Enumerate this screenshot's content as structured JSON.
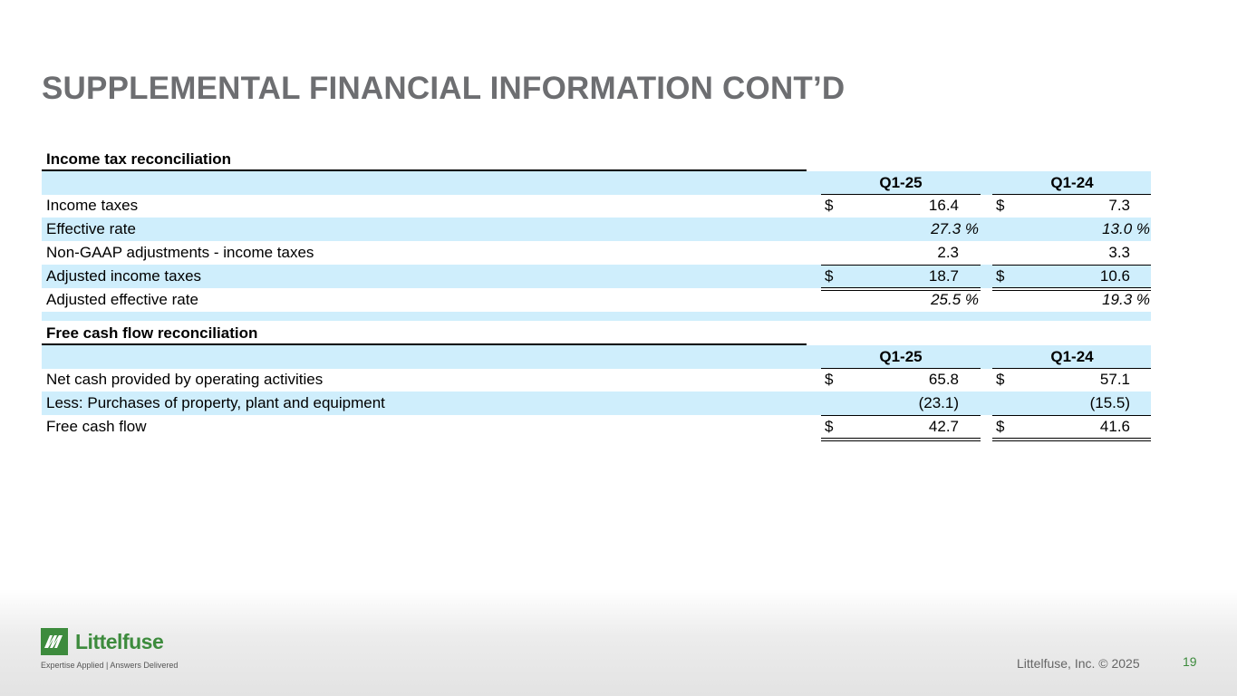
{
  "slide": {
    "title": "SUPPLEMENTAL FINANCIAL INFORMATION CONT’D",
    "copyright": "Littelfuse, Inc. © 2025",
    "page_number": "19"
  },
  "logo": {
    "name": "Littelfuse",
    "tagline": "Expertise Applied | Answers Delivered",
    "brand_color": "#3d8b3d"
  },
  "colors": {
    "row_shade": "#cfeefc",
    "title_gray": "#6d6e71"
  },
  "income_tax": {
    "title": "Income tax reconciliation",
    "columns": [
      "Q1-25",
      "Q1-24"
    ],
    "rows": [
      {
        "label": "Income taxes",
        "d1": "$",
        "v1": "16.4",
        "d2": "$",
        "v2": "7.3"
      },
      {
        "label": "Effective rate",
        "v1": "27.3 %",
        "v2": "13.0 %"
      },
      {
        "label": "Non-GAAP adjustments - income taxes",
        "v1": "2.3",
        "v2": "3.3"
      },
      {
        "label": "Adjusted income taxes",
        "d1": "$",
        "v1": "18.7",
        "d2": "$",
        "v2": "10.6"
      },
      {
        "label": "Adjusted effective rate",
        "v1": "25.5 %",
        "v2": "19.3 %"
      }
    ]
  },
  "free_cash_flow": {
    "title": "Free cash flow reconciliation",
    "columns": [
      "Q1-25",
      "Q1-24"
    ],
    "rows": [
      {
        "label": "Net cash provided by operating activities",
        "d1": "$",
        "v1": "65.8",
        "d2": "$",
        "v2": "57.1"
      },
      {
        "label": "Less: Purchases of property, plant and equipment",
        "v1": "(23.1)",
        "v2": "(15.5)"
      },
      {
        "label": "Free cash flow",
        "d1": "$",
        "v1": "42.7",
        "d2": "$",
        "v2": "41.6"
      }
    ]
  }
}
